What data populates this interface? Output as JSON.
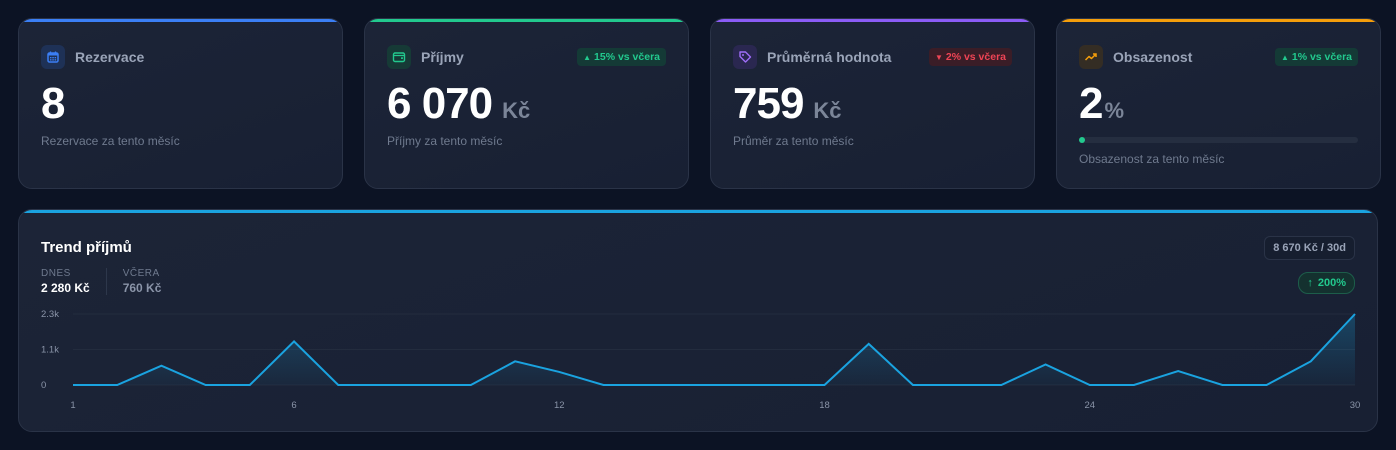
{
  "cards": [
    {
      "id": "reservations",
      "title": "Rezervace",
      "icon": "calendar-icon",
      "accent": "#3b7ff5",
      "icon_bg": "#1e3156",
      "icon_color": "#3b7ff5",
      "value": "8",
      "unit": "",
      "subtitle": "Rezervace za tento měsíc"
    },
    {
      "id": "income",
      "title": "Příjmy",
      "icon": "wallet-icon",
      "accent": "#22c98e",
      "icon_bg": "#163a36",
      "icon_color": "#22c98e",
      "value": "6 070",
      "unit": "Kč",
      "badge": {
        "direction": "up",
        "arrow": "▲",
        "text": "15% vs včera"
      },
      "subtitle": "Příjmy za tento měsíc"
    },
    {
      "id": "average",
      "title": "Průměrná hodnota",
      "icon": "tag-icon",
      "accent": "#8b5cf6",
      "icon_bg": "#2a2750",
      "icon_color": "#9f6ef8",
      "value": "759",
      "unit": "Kč",
      "badge": {
        "direction": "down",
        "arrow": "▼",
        "text": "2% vs včera"
      },
      "subtitle": "Průměr za tento měsíc"
    },
    {
      "id": "occupancy",
      "title": "Obsazenost",
      "icon": "trending-up-icon",
      "accent": "#f59e0b",
      "icon_bg": "#342d24",
      "icon_color": "#f59e0b",
      "value": "2",
      "unit": "%",
      "progress": 2,
      "badge": {
        "direction": "up",
        "arrow": "▲",
        "text": "1% vs včera"
      },
      "subtitle": "Obsazenost za tento měsíc"
    }
  ],
  "trend": {
    "title": "Trend příjmů",
    "today_label": "DNES",
    "today_value": "2 280 Kč",
    "yesterday_label": "VČERA",
    "yesterday_value": "760 Kč",
    "total": "8 670 Kč / 30d",
    "change_arrow": "↑",
    "change": "200%",
    "line_color": "#1aa3e0"
  },
  "chart_data": {
    "type": "area",
    "title": "Trend příjmů",
    "xlabel": "",
    "ylabel": "",
    "x": [
      1,
      2,
      3,
      4,
      5,
      6,
      7,
      8,
      9,
      10,
      11,
      12,
      13,
      14,
      15,
      16,
      17,
      18,
      19,
      20,
      21,
      22,
      23,
      24,
      25,
      26,
      27,
      28,
      29,
      30
    ],
    "values": [
      0,
      0,
      620,
      0,
      0,
      1400,
      0,
      0,
      0,
      0,
      760,
      420,
      0,
      0,
      0,
      0,
      0,
      0,
      1320,
      0,
      0,
      0,
      660,
      0,
      0,
      450,
      0,
      0,
      760,
      2280
    ],
    "y_ticks": [
      "0",
      "1.1k",
      "2.3k"
    ],
    "x_ticks": [
      "1",
      "6",
      "12",
      "18",
      "24",
      "30"
    ],
    "ylim": [
      0,
      2280
    ],
    "grid": true,
    "legend": false
  }
}
